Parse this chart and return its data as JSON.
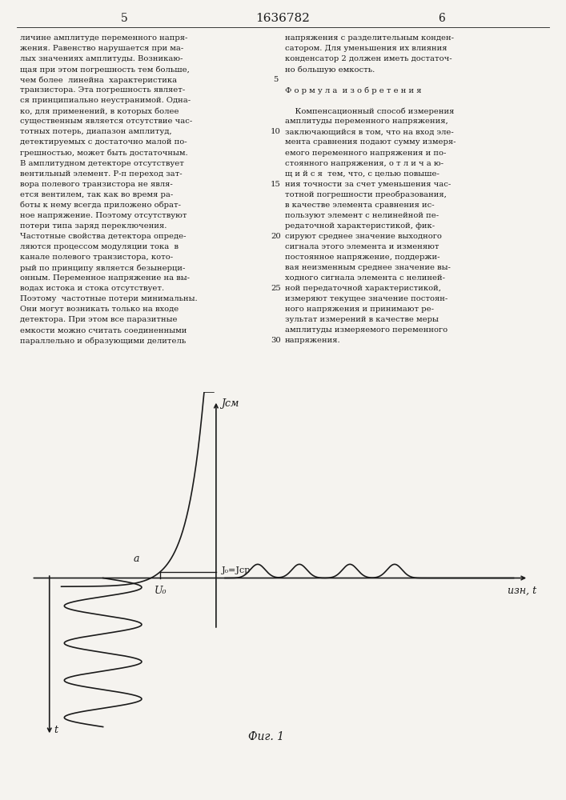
{
  "fig_caption": "Фиг. 1",
  "page_number_left": "5",
  "page_number_center": "1636782",
  "page_number_right": "6",
  "label_Jsm": "Jсм",
  "label_J0Jsr": "J₀=Jср",
  "label_U0": "U₀",
  "label_a": "a",
  "label_Uzn_t": "uзн, t",
  "label_t": "t",
  "bg_color": "#f5f3ef",
  "line_color": "#1a1a1a",
  "text_color": "#1a1a1a",
  "font_size_labels": 9,
  "font_size_caption": 10,
  "font_size_page": 10,
  "font_size_body": 7.2
}
